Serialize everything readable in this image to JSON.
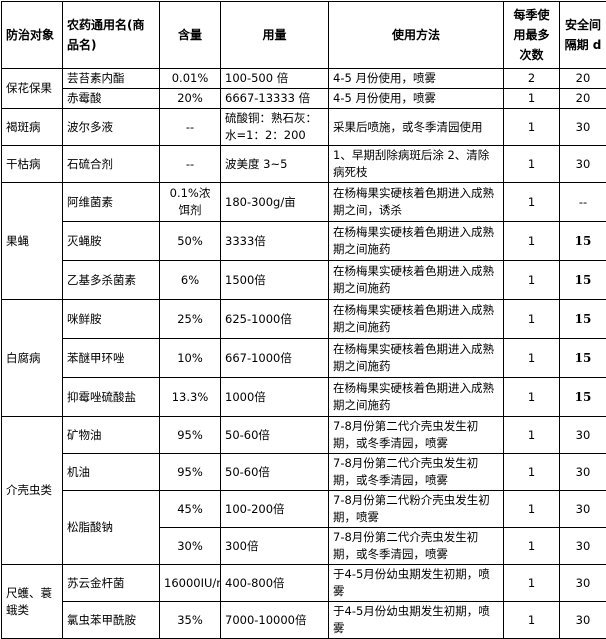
{
  "headers": [
    "防治对象",
    "农药通用名(商品名)",
    "含量",
    "用量",
    "使用方法",
    "每季使用最多次数",
    "安全间隔期 d"
  ],
  "rows": [
    {
      "target": "保花保果",
      "name": "芸苔素内酯",
      "content": "0.01%",
      "dose": "100-500 倍",
      "method": "4-5 月份使用，喷雾",
      "times": "2",
      "interval": "20"
    },
    {
      "name": "赤霉酸",
      "content": "20%",
      "dose": "6667-13333 倍",
      "method": "4-5 月份使用，喷雾",
      "times": "1",
      "interval": "20"
    },
    {
      "target": "褐斑病",
      "name": "波尔多液",
      "content": "--",
      "dose": "硫酸铜：熟石灰：水=1：2：200",
      "method": "采果后喷施，或冬季清园使用",
      "times": "1",
      "interval": "30"
    },
    {
      "target": "干枯病",
      "name": "石硫合剂",
      "content": "--",
      "dose": "波美度 3~5",
      "method": "1、早期刮除病斑后涂 2、清除病死枝",
      "times": "1",
      "interval": "30"
    },
    {
      "target": "果蝇",
      "name": "阿维菌素",
      "content": "0.1%浓饵剂",
      "dose": "180-300g/亩",
      "method": "在杨梅果实硬核着色期进入成熟期之间，诱杀",
      "times": "1",
      "interval": "--"
    },
    {
      "name": "灭蝇胺",
      "content": "50%",
      "dose": "3333倍",
      "method": "在杨梅果实硬核着色期进入成熟期之间施药",
      "times": "1",
      "interval": "15"
    },
    {
      "name": "乙基多杀菌素",
      "content": "6%",
      "dose": "1500倍",
      "method": "在杨梅果实硬核着色期进入成熟期之间施药",
      "times": "1",
      "interval": "15"
    },
    {
      "target": "白腐病",
      "name": "咪鲜胺",
      "content": "25%",
      "dose": "625-1000倍",
      "method": "在杨梅果实硬核着色期进入成熟期之间施药",
      "times": "1",
      "interval": "15"
    },
    {
      "name": "苯醚甲环唑",
      "content": "10%",
      "dose": "667-1000倍",
      "method": "在杨梅果实硬核着色期进入成熟期之间施药",
      "times": "1",
      "interval": "15"
    },
    {
      "name": "抑霉唑硫酸盐",
      "content": "13.3%",
      "dose": "1000倍",
      "method": "在杨梅果实硬核着色期进入成熟期之间施药",
      "times": "1",
      "interval": "15"
    },
    {
      "target": "介壳虫类",
      "name": "矿物油",
      "content": "95%",
      "dose": "50-60倍",
      "method": "7-8月份第二代介壳虫发生初期，或冬季清园，喷雾",
      "times": "1",
      "interval": "30"
    },
    {
      "name": "机油",
      "content": "95%",
      "dose": "50-60倍",
      "method": "7-8月份第二代介壳虫发生初期，或冬季清园，喷雾",
      "times": "1",
      "interval": "30"
    },
    {
      "name": "松脂酸钠",
      "content": "45%",
      "dose": "100-200倍",
      "method": "7-8月份第二代粉介壳虫发生初期，喷雾",
      "times": "1",
      "interval": "30"
    },
    {
      "content": "30%",
      "dose": "300倍",
      "method": "7-8月份第二代介壳虫发生初期，或冬季清园，喷雾",
      "times": "1",
      "interval": "30"
    },
    {
      "target": "尺蠖、蓑蛾类",
      "name": "苏云金杆菌",
      "content": "16000IU/mg",
      "dose": "400-800倍",
      "method": "于4-5月份幼虫期发生初期，喷雾",
      "times": "1",
      "interval": "30"
    },
    {
      "name": "氯虫苯甲酰胺",
      "content": "35%",
      "dose": "7000-10000倍",
      "method": "于4-5月份幼虫期发生初期，喷雾",
      "times": "1",
      "interval": "30"
    }
  ]
}
